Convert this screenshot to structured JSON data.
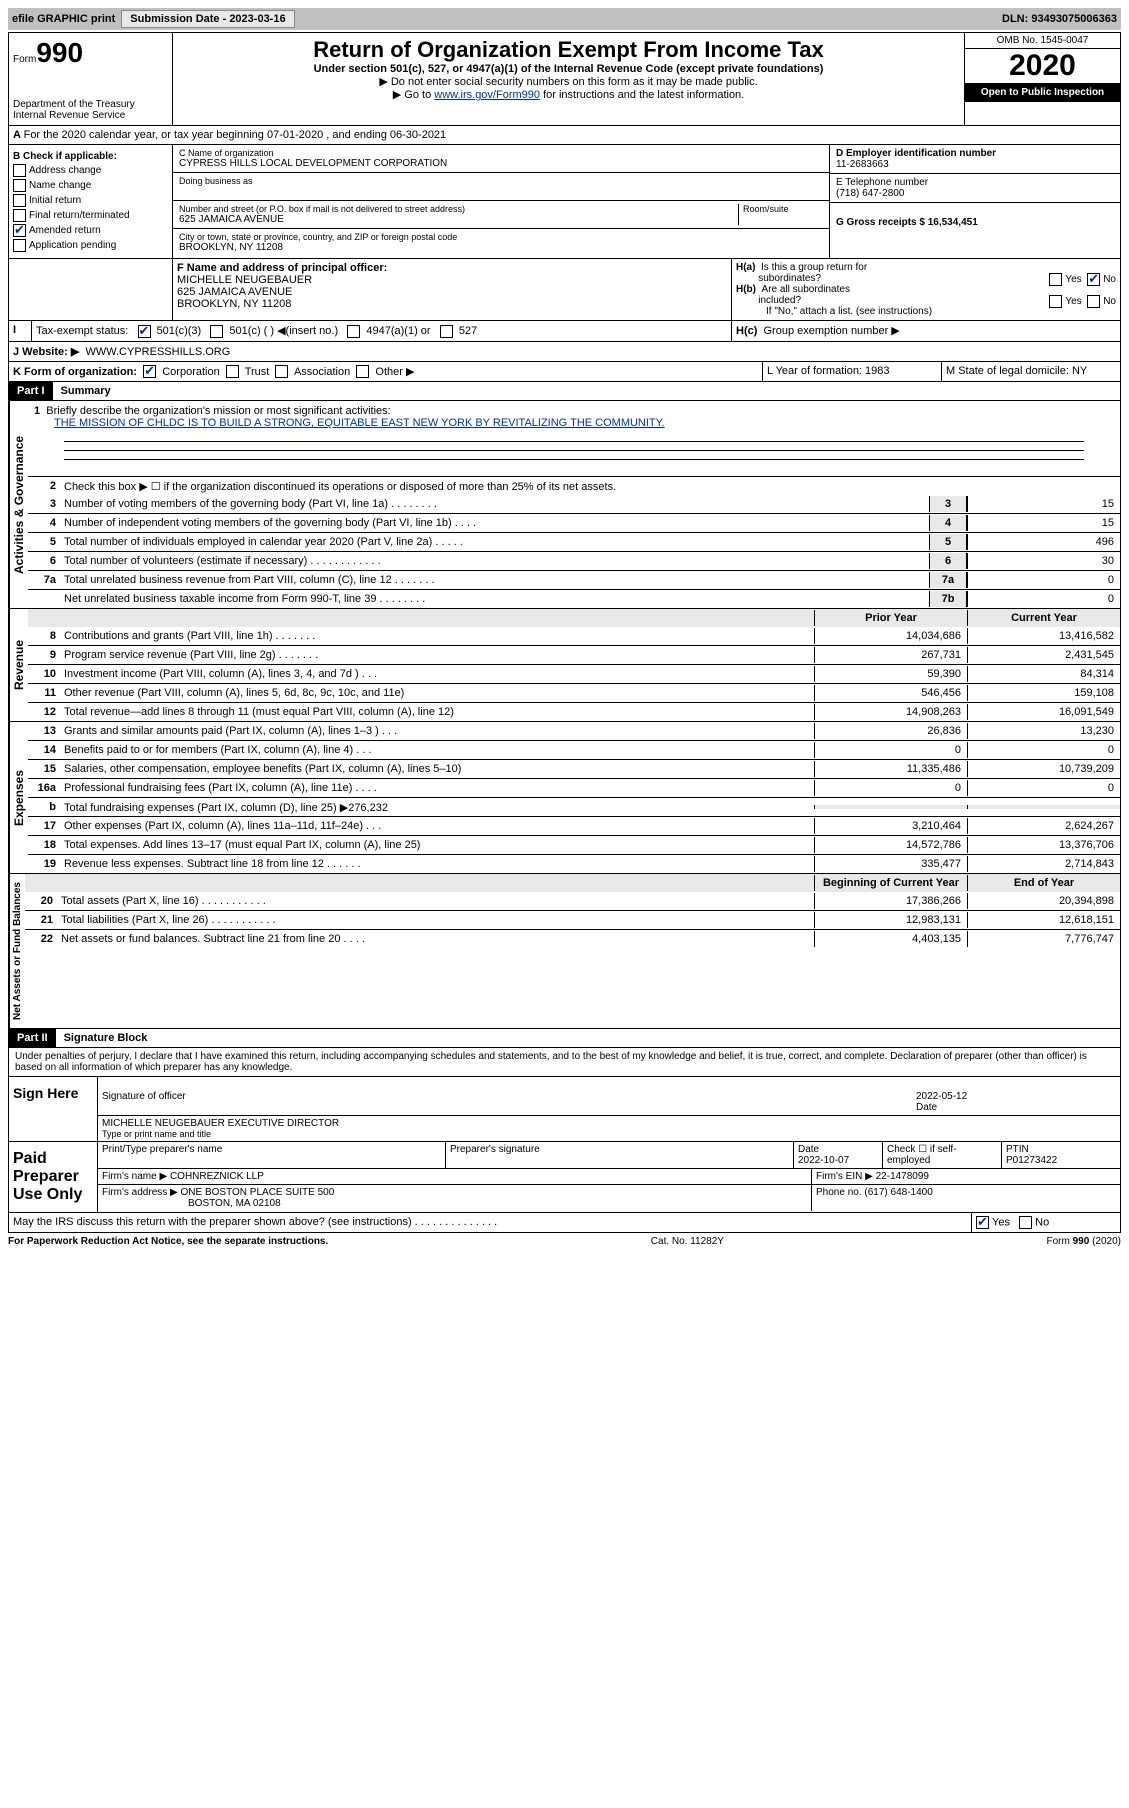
{
  "topbar": {
    "efile": "efile GRAPHIC print",
    "submission_label": "Submission Date - 2023-03-16",
    "dln": "DLN: 93493075006363"
  },
  "header": {
    "form_prefix": "Form",
    "form_num": "990",
    "dept": "Department of the Treasury\nInternal Revenue Service",
    "title": "Return of Organization Exempt From Income Tax",
    "subtitle": "Under section 501(c), 527, or 4947(a)(1) of the Internal Revenue Code (except private foundations)",
    "note1": "▶ Do not enter social security numbers on this form as it may be made public.",
    "note2_pre": "▶ Go to ",
    "note2_link": "www.irs.gov/Form990",
    "note2_post": " for instructions and the latest information.",
    "omb": "OMB No. 1545-0047",
    "year": "2020",
    "open_public": "Open to Public Inspection"
  },
  "section_a": "For the 2020 calendar year, or tax year beginning 07-01-2020    , and ending 06-30-2021",
  "block_b": {
    "heading": "B Check if applicable:",
    "items": [
      "Address change",
      "Name change",
      "Initial return",
      "Final return/terminated",
      "Amended return",
      "Application pending"
    ],
    "checked_index": 4
  },
  "block_c": {
    "c_label": "C Name of organization",
    "org": "CYPRESS HILLS LOCAL DEVELOPMENT CORPORATION",
    "dba_label": "Doing business as",
    "addr_label": "Number and street (or P.O. box if mail is not delivered to street address)",
    "room_label": "Room/suite",
    "addr": "625 JAMAICA AVENUE",
    "city_label": "City or town, state or province, country, and ZIP or foreign postal code",
    "city": "BROOKLYN, NY  11208"
  },
  "block_deg": {
    "d_label": "D Employer identification number",
    "d_val": "11-2683663",
    "e_label": "E Telephone number",
    "e_val": "(718) 647-2800",
    "g_label": "G Gross receipts $ 16,534,451"
  },
  "block_f": {
    "f_label": "F  Name and address of principal officer:",
    "name": "MICHELLE NEUGEBAUER",
    "addr1": "625 JAMAICA AVENUE",
    "addr2": "BROOKLYN, NY  11208"
  },
  "block_h": {
    "ha_label": "H(a)  Is this a group return for subordinates?",
    "hb_label": "H(b)  Are all subordinates included?",
    "hb_note": "If \"No,\" attach a list. (see instructions)",
    "hc_label": "H(c)  Group exemption number ▶"
  },
  "tax_exempt": {
    "label": "Tax-exempt status:",
    "opt1": "501(c)(3)",
    "opt2": "501(c) (  ) ◀(insert no.)",
    "opt3": "4947(a)(1) or",
    "opt4": "527"
  },
  "website": {
    "label": "J   Website: ▶",
    "val": "WWW.CYPRESSHILLS.ORG"
  },
  "k_line": "K Form of organization:",
  "k_opts": [
    "Corporation",
    "Trust",
    "Association",
    "Other ▶"
  ],
  "l_line": "L Year of formation: 1983",
  "m_line": "M State of legal domicile: NY",
  "part1": {
    "tag": "Part I",
    "name": "Summary",
    "q1_label": "Briefly describe the organization's mission or most significant activities:",
    "q1_val": "THE MISSION OF CHLDC IS TO BUILD A STRONG, EQUITABLE EAST NEW YORK BY REVITALIZING THE COMMUNITY.",
    "q2": "Check this box ▶ ☐  if the organization discontinued its operations or disposed of more than 25% of its net assets.",
    "gov_label": "Activities & Governance",
    "rev_label": "Revenue",
    "exp_label": "Expenses",
    "na_label": "Net Assets or Fund Balances",
    "lines_gov": [
      {
        "n": "3",
        "d": "Number of voting members of the governing body (Part VI, line 1a) . . . . . . . .",
        "c": "3",
        "v": "15"
      },
      {
        "n": "4",
        "d": "Number of independent voting members of the governing body (Part VI, line 1b) . . . .",
        "c": "4",
        "v": "15"
      },
      {
        "n": "5",
        "d": "Total number of individuals employed in calendar year 2020 (Part V, line 2a) . . . . .",
        "c": "5",
        "v": "496"
      },
      {
        "n": "6",
        "d": "Total number of volunteers (estimate if necessary) . . . . . . . . . . . .",
        "c": "6",
        "v": "30"
      },
      {
        "n": "7a",
        "d": "Total unrelated business revenue from Part VIII, column (C), line 12 . . . . . . .",
        "c": "7a",
        "v": "0"
      },
      {
        "n": "",
        "d": "Net unrelated business taxable income from Form 990-T, line 39 . . . . . . . .",
        "c": "7b",
        "v": "0"
      }
    ],
    "prior_year": "Prior Year",
    "current_year": "Current Year",
    "lines_rev": [
      {
        "n": "8",
        "d": "Contributions and grants (Part VIII, line 1h) . . . . . . .",
        "p": "14,034,686",
        "c": "13,416,582"
      },
      {
        "n": "9",
        "d": "Program service revenue (Part VIII, line 2g) . . . . . . .",
        "p": "267,731",
        "c": "2,431,545"
      },
      {
        "n": "10",
        "d": "Investment income (Part VIII, column (A), lines 3, 4, and 7d ) . . .",
        "p": "59,390",
        "c": "84,314"
      },
      {
        "n": "11",
        "d": "Other revenue (Part VIII, column (A), lines 5, 6d, 8c, 9c, 10c, and 11e)",
        "p": "546,456",
        "c": "159,108"
      },
      {
        "n": "12",
        "d": "Total revenue—add lines 8 through 11 (must equal Part VIII, column (A), line 12)",
        "p": "14,908,263",
        "c": "16,091,549"
      }
    ],
    "lines_exp": [
      {
        "n": "13",
        "d": "Grants and similar amounts paid (Part IX, column (A), lines 1–3 ) . . .",
        "p": "26,836",
        "c": "13,230"
      },
      {
        "n": "14",
        "d": "Benefits paid to or for members (Part IX, column (A), line 4) . . .",
        "p": "0",
        "c": "0"
      },
      {
        "n": "15",
        "d": "Salaries, other compensation, employee benefits (Part IX, column (A), lines 5–10)",
        "p": "11,335,486",
        "c": "10,739,209"
      },
      {
        "n": "16a",
        "d": "Professional fundraising fees (Part IX, column (A), line 11e) . . . .",
        "p": "0",
        "c": "0"
      },
      {
        "n": "b",
        "d": "Total fundraising expenses (Part IX, column (D), line 25) ▶276,232",
        "p": "",
        "c": ""
      },
      {
        "n": "17",
        "d": "Other expenses (Part IX, column (A), lines 11a–11d, 11f–24e) . . .",
        "p": "3,210,464",
        "c": "2,624,267"
      },
      {
        "n": "18",
        "d": "Total expenses. Add lines 13–17 (must equal Part IX, column (A), line 25)",
        "p": "14,572,786",
        "c": "13,376,706"
      },
      {
        "n": "19",
        "d": "Revenue less expenses. Subtract line 18 from line 12 . . . . . .",
        "p": "335,477",
        "c": "2,714,843"
      }
    ],
    "bcy": "Beginning of Current Year",
    "eoy": "End of Year",
    "lines_na": [
      {
        "n": "20",
        "d": "Total assets (Part X, line 16) . . . . . . . . . . .",
        "p": "17,386,266",
        "c": "20,394,898"
      },
      {
        "n": "21",
        "d": "Total liabilities (Part X, line 26) . . . . . . . . . . .",
        "p": "12,983,131",
        "c": "12,618,151"
      },
      {
        "n": "22",
        "d": "Net assets or fund balances. Subtract line 21 from line 20 . . . .",
        "p": "4,403,135",
        "c": "7,776,747"
      }
    ]
  },
  "part2": {
    "tag": "Part II",
    "name": "Signature Block",
    "declaration": "Under penalties of perjury, I declare that I have examined this return, including accompanying schedules and statements, and to the best of my knowledge and belief, it is true, correct, and complete. Declaration of preparer (other than officer) is based on all information of which preparer has any knowledge.",
    "sign_here": "Sign Here",
    "sig_officer": "Signature of officer",
    "sig_date": "2022-05-12",
    "date_lbl": "Date",
    "officer_name": "MICHELLE NEUGEBAUER  EXECUTIVE DIRECTOR",
    "type_name": "Type or print name and title",
    "paid_prep": "Paid Preparer Use Only",
    "print_name_lbl": "Print/Type preparer's name",
    "prep_sig_lbl": "Preparer's signature",
    "prep_date_lbl": "Date",
    "prep_date": "2022-10-07",
    "self_emp": "Check ☐ if self-employed",
    "ptin_lbl": "PTIN",
    "ptin": "P01273422",
    "firm_name_lbl": "Firm's name    ▶",
    "firm_name": "COHNREZNICK LLP",
    "firm_ein_lbl": "Firm's EIN ▶",
    "firm_ein": "22-1478099",
    "firm_addr_lbl": "Firm's address ▶",
    "firm_addr1": "ONE BOSTON PLACE SUITE 500",
    "firm_addr2": "BOSTON, MA  02108",
    "phone_lbl": "Phone no.",
    "phone": "(617) 648-1400",
    "discuss": "May the IRS discuss this return with the preparer shown above? (see instructions) . . . . . . . . . . . . . ."
  },
  "footer": {
    "left": "For Paperwork Reduction Act Notice, see the separate instructions.",
    "mid": "Cat. No. 11282Y",
    "right": "Form 990 (2020)"
  }
}
